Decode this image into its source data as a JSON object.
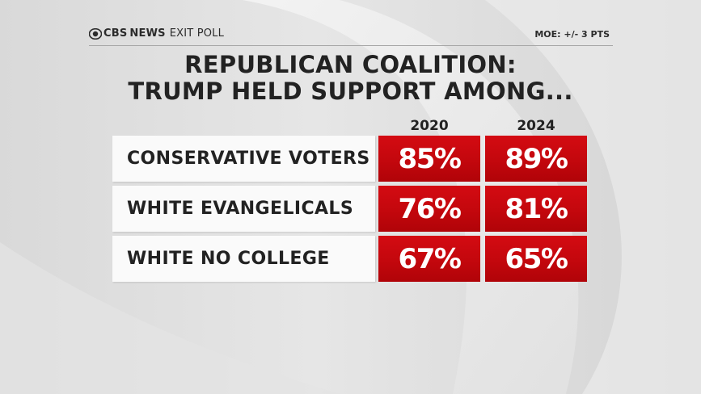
{
  "header": {
    "brand_prefix": "CBS",
    "brand_news": "NEWS",
    "brand_suffix": "EXIT POLL",
    "moe": "MOE: +/- 3 PTS"
  },
  "title_line1": "REPUBLICAN COALITION:",
  "title_line2": "TRUMP HELD SUPPORT AMONG...",
  "chart_data": {
    "type": "table",
    "title": "REPUBLICAN COALITION: TRUMP HELD SUPPORT AMONG...",
    "columns": [
      "2020",
      "2024"
    ],
    "rows": [
      {
        "label": "CONSERVATIVE VOTERS",
        "values": [
          "85%",
          "89%"
        ]
      },
      {
        "label": "WHITE EVANGELICALS",
        "values": [
          "76%",
          "81%"
        ]
      },
      {
        "label": "WHITE NO COLLEGE",
        "values": [
          "67%",
          "65%"
        ]
      }
    ],
    "values_numeric": [
      [
        85,
        89
      ],
      [
        76,
        81
      ],
      [
        67,
        65
      ]
    ]
  },
  "colors": {
    "cell": "#c3070d",
    "label_bg": "#fafafa",
    "background": "#dcdcdc",
    "text": "#222222"
  }
}
